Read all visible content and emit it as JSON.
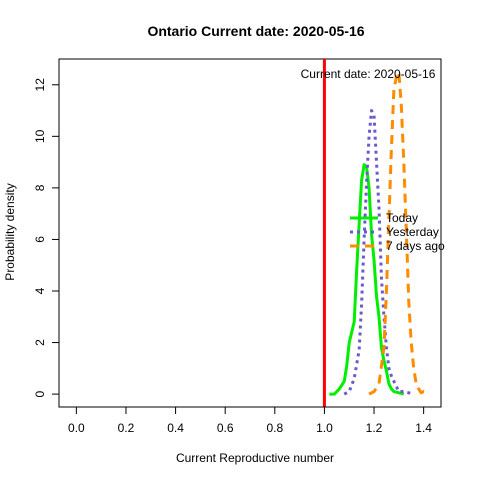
{
  "chart_data": {
    "type": "line",
    "title": "Ontario   Current date:  2020-05-16",
    "xlabel": "Current Reproductive number",
    "ylabel": "Probability density",
    "annotation": "Current date:  2020-05-16",
    "xlim": [
      -0.07,
      1.47
    ],
    "ylim": [
      -0.5,
      13
    ],
    "x_ticks": [
      "0.0",
      "0.2",
      "0.4",
      "0.6",
      "0.8",
      "1.0",
      "1.2",
      "1.4"
    ],
    "x_tick_values": [
      0,
      0.2,
      0.4,
      0.6,
      0.8,
      1.0,
      1.2,
      1.4
    ],
    "y_ticks": [
      "0",
      "2",
      "4",
      "6",
      "8",
      "10",
      "12"
    ],
    "y_tick_values": [
      0,
      2,
      4,
      6,
      8,
      10,
      12
    ],
    "reference_line": {
      "x": 1.0,
      "color": "#ff0000"
    },
    "legend_position": "right",
    "series": [
      {
        "name": "Today",
        "color": "#00ee00",
        "dash": "solid",
        "x": [
          1.02,
          1.04,
          1.06,
          1.08,
          1.09,
          1.1,
          1.12,
          1.13,
          1.14,
          1.15,
          1.16,
          1.17,
          1.18,
          1.19,
          1.2,
          1.21,
          1.22,
          1.23,
          1.24,
          1.25,
          1.26,
          1.27,
          1.28,
          1.3,
          1.32
        ],
        "y": [
          0.0,
          0.0,
          0.2,
          0.5,
          1.1,
          2.0,
          2.8,
          4.8,
          6.6,
          8.3,
          8.9,
          8.8,
          8.0,
          6.2,
          5.2,
          3.8,
          3.0,
          1.8,
          1.3,
          0.9,
          0.4,
          0.2,
          0.1,
          0.05,
          0.0
        ]
      },
      {
        "name": "Yesterday",
        "color": "#6a5acd",
        "dash": "dotted",
        "x": [
          1.08,
          1.1,
          1.12,
          1.14,
          1.15,
          1.16,
          1.17,
          1.18,
          1.19,
          1.2,
          1.21,
          1.22,
          1.23,
          1.24,
          1.25,
          1.26,
          1.27,
          1.28,
          1.29,
          1.3,
          1.32,
          1.34,
          1.36
        ],
        "y": [
          0.0,
          0.1,
          0.6,
          1.7,
          3.5,
          6.0,
          8.2,
          10.0,
          11.0,
          10.8,
          9.0,
          7.2,
          4.5,
          3.0,
          1.8,
          1.0,
          0.7,
          0.5,
          0.3,
          0.1,
          0.1,
          0.05,
          0.0
        ]
      },
      {
        "name": "7 days ago",
        "color": "#ff8c00",
        "dash": "dashed",
        "x": [
          1.18,
          1.2,
          1.22,
          1.24,
          1.25,
          1.26,
          1.27,
          1.28,
          1.29,
          1.3,
          1.31,
          1.32,
          1.33,
          1.34,
          1.35,
          1.36,
          1.37,
          1.38,
          1.39,
          1.4,
          1.42
        ],
        "y": [
          0.0,
          0.1,
          0.4,
          1.8,
          4.0,
          6.8,
          9.5,
          11.8,
          12.3,
          12.5,
          11.2,
          9.0,
          6.4,
          3.6,
          2.0,
          1.0,
          0.4,
          0.2,
          0.05,
          0.1,
          0.0
        ]
      }
    ]
  }
}
